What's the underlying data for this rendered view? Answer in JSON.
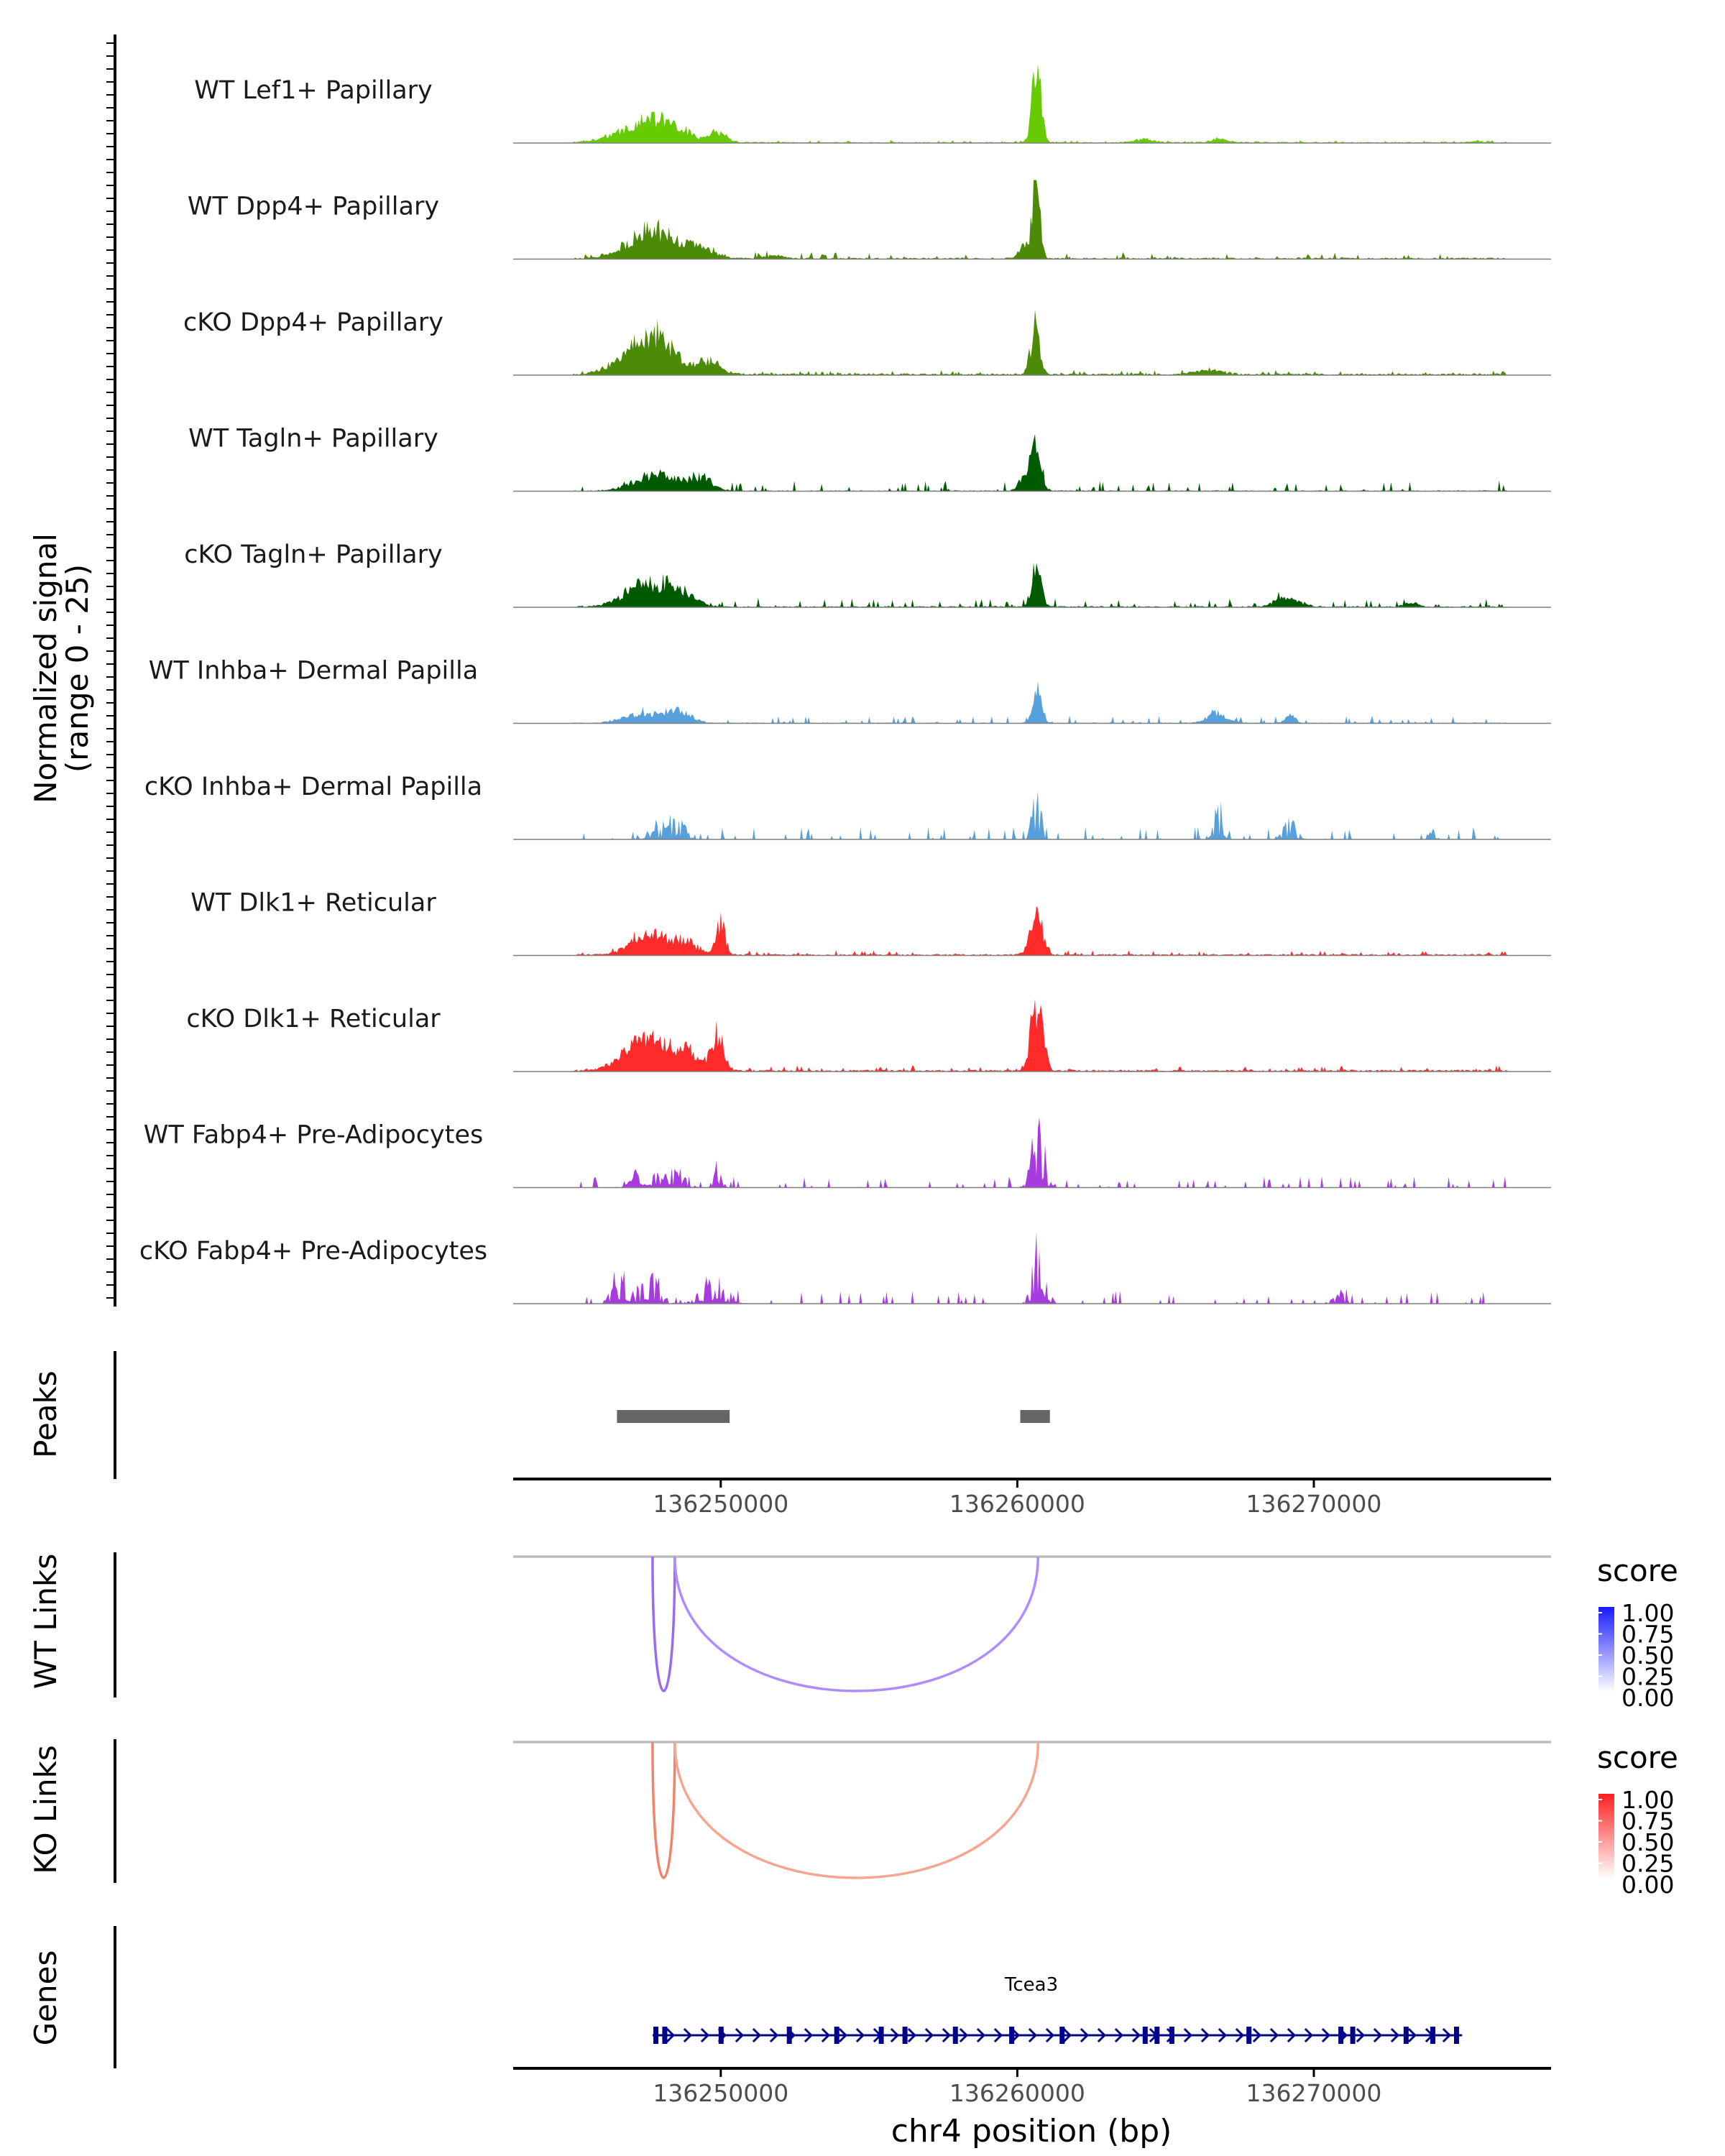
{
  "chart_data": {
    "type": "area",
    "genomic_region": "chr4:136236000-136276000",
    "x_label": "chr4 position (bp)",
    "xlim": [
      136243000,
      136278000
    ],
    "x_ticks": [
      136250000,
      136260000,
      136270000
    ],
    "x_tick_labels": [
      "136250000",
      "136260000",
      "136270000"
    ],
    "coverage": {
      "ylabel_line1": "Normalized signal",
      "ylabel_line2": "(range 0 - 25)",
      "ylim": [
        0,
        25
      ],
      "tracks": [
        {
          "name": "WT Lef1+ Papillary",
          "color": "#66CC00",
          "peaks": [
            [
              136247400,
              5,
              900
            ],
            [
              136248200,
              4,
              600
            ],
            [
              136249900,
              3,
              300
            ],
            [
              136260650,
              24,
              150
            ],
            [
              136264300,
              1,
              300
            ],
            [
              136266800,
              1,
              300
            ],
            [
              136275500,
              0.5,
              200
            ]
          ],
          "baseline": 0.4,
          "noise": 0.3,
          "seed": 11
        },
        {
          "name": "WT Dpp4+ Papillary",
          "color": "#4B8B05",
          "peaks": [
            [
              136247500,
              7,
              700
            ],
            [
              136248300,
              4,
              500
            ],
            [
              136249400,
              3,
              400
            ],
            [
              136260650,
              24,
              120
            ],
            [
              136260300,
              5,
              200
            ],
            [
              136251800,
              1,
              300
            ]
          ],
          "baseline": 0.5,
          "noise": 0.9,
          "seed": 12
        },
        {
          "name": "cKO Dpp4+ Papillary",
          "color": "#4B8B05",
          "peaks": [
            [
              136247300,
              9,
              700
            ],
            [
              136248100,
              6,
              500
            ],
            [
              136249600,
              4,
              400
            ],
            [
              136260600,
              14,
              150
            ],
            [
              136266500,
              1.5,
              400
            ]
          ],
          "baseline": 0.6,
          "noise": 0.6,
          "seed": 13
        },
        {
          "name": "WT Tagln+ Papillary",
          "color": "#005A00",
          "peaks": [
            [
              136247800,
              5,
              700
            ],
            [
              136249300,
              4,
              400
            ],
            [
              136260650,
              15,
              160
            ],
            [
              136260300,
              6,
              200
            ]
          ],
          "baseline": 0.3,
          "noise": 1.6,
          "seed": 14
        },
        {
          "name": "cKO Tagln+ Papillary",
          "color": "#005A00",
          "peaks": [
            [
              136247500,
              7,
              700
            ],
            [
              136248600,
              4,
              500
            ],
            [
              136260650,
              13,
              150
            ],
            [
              136269100,
              3,
              400
            ],
            [
              136273300,
              1.5,
              200
            ]
          ],
          "baseline": 0.4,
          "noise": 1.4,
          "seed": 15
        },
        {
          "name": "WT Inhba+ Dermal Papilla",
          "color": "#56A0DC",
          "peaks": [
            [
              136247500,
              3,
              700
            ],
            [
              136248600,
              3,
              400
            ],
            [
              136260650,
              12,
              140
            ],
            [
              136266700,
              3,
              300
            ],
            [
              136269200,
              3,
              150
            ]
          ],
          "baseline": 0.3,
          "noise": 1.1,
          "seed": 16
        },
        {
          "name": "cKO Inhba+ Dermal Papilla",
          "color": "#56A0DC",
          "peaks": [
            [
              136248000,
              4,
              400
            ],
            [
              136248600,
              6,
              200
            ],
            [
              136260650,
              13,
              150
            ],
            [
              136266800,
              10,
              150
            ],
            [
              136269200,
              6,
              200
            ],
            [
              136274000,
              3,
              100
            ]
          ],
          "baseline": 0.0,
          "noise": 2.0,
          "seed": 17
        },
        {
          "name": "WT Dlk1+ Reticular",
          "color": "#FF2A2A",
          "peaks": [
            [
              136247600,
              7,
              600
            ],
            [
              136248800,
              4,
              400
            ],
            [
              136250000,
              10,
              150
            ],
            [
              136260650,
              13,
              200
            ]
          ],
          "baseline": 0.5,
          "noise": 0.7,
          "seed": 18
        },
        {
          "name": "cKO Dlk1+ Reticular",
          "color": "#FF2A2A",
          "peaks": [
            [
              136247400,
              9,
              700
            ],
            [
              136248800,
              6,
              500
            ],
            [
              136249900,
              11,
              200
            ],
            [
              136260650,
              21,
              200
            ]
          ],
          "baseline": 0.6,
          "noise": 0.8,
          "seed": 19
        },
        {
          "name": "WT Fabp4+ Pre-Adipocytes",
          "color": "#A83BE0",
          "peaks": [
            [
              136247500,
              5,
              400
            ],
            [
              136248500,
              5,
              300
            ],
            [
              136249900,
              8,
              120
            ],
            [
              136260700,
              20,
              200
            ]
          ],
          "baseline": 0.0,
          "noise": 1.8,
          "seed": 20
        },
        {
          "name": "cKO Fabp4+ Pre-Adipocytes",
          "color": "#A83BE0",
          "peaks": [
            [
              136246600,
              8,
              250
            ],
            [
              136247600,
              7,
              300
            ],
            [
              136249700,
              7,
              400
            ],
            [
              136260750,
              20,
              200
            ],
            [
              136270800,
              3,
              200
            ]
          ],
          "baseline": 0.0,
          "noise": 2.0,
          "seed": 21
        }
      ]
    },
    "peaks_track": {
      "label": "Peaks",
      "regions": [
        [
          136246500,
          136250300
        ],
        [
          136260100,
          136261100
        ]
      ],
      "color": "#666666"
    },
    "link_tracks": [
      {
        "label": "WT Links",
        "legend_title": "score",
        "legend_ticks": [
          "1.00",
          "0.75",
          "0.50",
          "0.25",
          "0.00"
        ],
        "gradient": [
          "#ffffff",
          "#1a1aff"
        ],
        "links": [
          {
            "start": 136247700,
            "end": 136248450,
            "score": 0.55,
            "color": "#9A6BF0"
          },
          {
            "start": 136248450,
            "end": 136260700,
            "score": 0.45,
            "color": "#B08CFF"
          }
        ]
      },
      {
        "label": "KO Links",
        "legend_title": "score",
        "legend_ticks": [
          "1.00",
          "0.75",
          "0.50",
          "0.25",
          "0.00"
        ],
        "gradient": [
          "#ffffff",
          "#ff2020"
        ],
        "links": [
          {
            "start": 136247700,
            "end": 136248450,
            "score": 0.45,
            "color": "#F2836B"
          },
          {
            "start": 136248450,
            "end": 136260700,
            "score": 0.4,
            "color": "#F7A58F"
          }
        ]
      }
    ],
    "genes_track": {
      "label": "Genes",
      "gene_name": "Tcea3",
      "start": 136247700,
      "end": 136275000,
      "strand": "+",
      "color": "#00008B",
      "exons": [
        136247800,
        136248100,
        136250000,
        136252300,
        136253900,
        136255400,
        136256200,
        136257900,
        136259800,
        136261500,
        136264300,
        136264700,
        136265200,
        136267800,
        136270900,
        136271300,
        136273100,
        136274000,
        136274800
      ]
    }
  }
}
